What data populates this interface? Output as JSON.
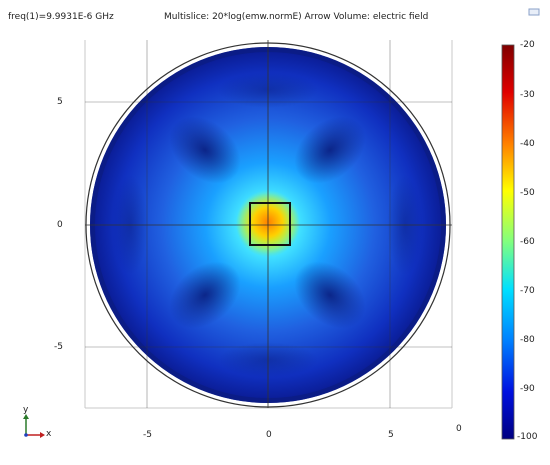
{
  "header": {
    "freq": "freq(1)=9.9931E-6 GHz",
    "title": "Multislice: 20*log(emw.normE)  Arrow Volume: electric field"
  },
  "axes": {
    "y_ticks": [
      "5",
      "0",
      "-5"
    ],
    "x_ticks": [
      "-5",
      "0",
      "5"
    ],
    "x_extra": "0"
  },
  "colorbar": {
    "labels": [
      "-20",
      "-30",
      "-40",
      "-50",
      "-60",
      "-70",
      "-80",
      "-90",
      "-100"
    ],
    "colors": [
      "#800000",
      "#ff0000",
      "#ffa000",
      "#ffff00",
      "#80ff80",
      "#00ffff",
      "#0080ff",
      "#0000ff",
      "#000080"
    ]
  },
  "axis_indicator": {
    "y": "y",
    "x": "x"
  },
  "icons": {
    "corner": "window-restore-icon"
  }
}
